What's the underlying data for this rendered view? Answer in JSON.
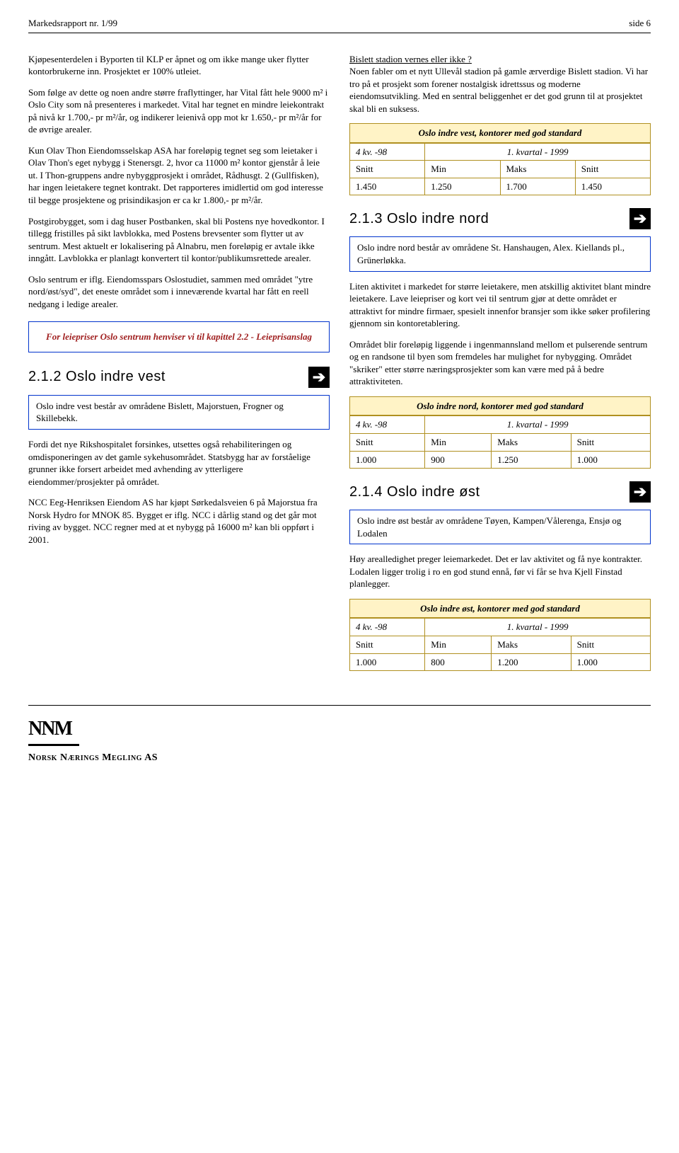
{
  "header": {
    "left": "Markedsrapport nr. 1/99",
    "right": "side 6"
  },
  "left_col": {
    "p1": "Kjøpesenterdelen i Byporten til KLP er åpnet og om ikke mange uker flytter kontorbrukerne inn. Prosjektet er 100% utleiet.",
    "p2": "Som følge av dette og noen andre større fraflyttinger, har Vital fått hele 9000 m² i Oslo City som nå presenteres i markedet. Vital har tegnet en mindre leiekontrakt på nivå kr 1.700,- pr m²/år, og indikerer leienivå opp mot kr 1.650,- pr m²/år for de øvrige arealer.",
    "p3": "Kun Olav Thon Eiendomsselskap ASA har foreløpig tegnet seg som leietaker i Olav Thon's eget nybygg i Stenersgt. 2, hvor ca 11000 m² kontor gjenstår å leie ut. I Thon-gruppens andre nybyggprosjekt i området, Rådhusgt. 2 (Gullfisken), har ingen leietakere tegnet kontrakt. Det rapporteres imidlertid om god interesse til begge prosjektene og prisindikasjon er ca kr 1.800,- pr m²/år.",
    "p4": "Postgirobygget, som i dag huser Postbanken, skal bli Postens nye hovedkontor. I tillegg fristilles på sikt lavblokka, med Postens brevsenter som flytter ut av sentrum. Mest aktuelt er lokalisering på Alnabru, men foreløpig er avtale ikke inngått. Lavblokka er planlagt konvertert til kontor/publikumsrettede arealer.",
    "p5": "Oslo sentrum er iflg. Eiendomsspars Oslostudiet, sammen med området \"ytre nord/øst/syd\", det eneste området som i inneværende kvartal har fått en reell nedgang i ledige arealer.",
    "callout": "For leiepriser Oslo sentrum henviser vi til kapittel 2.2 - Leieprisanslag",
    "h_212": "2.1.2 Oslo indre vest",
    "area_212": "Oslo indre vest består av områdene Bislett, Majorstuen, Frogner og  Skillebekk.",
    "p6": "Fordi det nye Rikshospitalet forsinkes, utsettes også rehabiliteringen og omdisponeringen av det gamle sykehusområdet. Statsbygg har av forståelige grunner ikke forsert arbeidet med avhending av ytterligere eiendommer/prosjekter på området.",
    "p7": "NCC Eeg-Henriksen Eiendom AS har kjøpt Sørkedalsveien 6 på Majorstua fra Norsk Hydro for MNOK 85. Bygget er iflg. NCC i dårlig stand og det går mot riving av bygget. NCC regner med at et nybygg på 16000 m² kan bli oppført i 2001."
  },
  "right_col": {
    "p1a": "Bislett stadion vernes eller ikke ?",
    "p1b": "Noen fabler om et nytt Ullevål stadion på gamle ærverdige Bislett stadion. Vi har tro på et prosjekt som forener nostalgisk idrettssus og moderne eiendomsutvikling. Med en sentral beliggenhet er det god grunn til at prosjektet skal bli en suksess.",
    "table_vest": {
      "title": "Oslo indre vest, kontorer med god standard",
      "q_prev": "4 kv. -98",
      "q_curr": "1. kvartal - 1999",
      "cols": [
        "Snitt",
        "Min",
        "Maks",
        "Snitt"
      ],
      "row": [
        "1.450",
        "1.250",
        "1.700",
        "1.450"
      ]
    },
    "h_213": "2.1.3 Oslo indre nord",
    "area_213": "Oslo indre nord består av områdene St. Hanshaugen, Alex. Kiellands pl., Grünerløkka.",
    "p2": "Liten aktivitet i markedet for større leietakere, men atskillig aktivitet blant mindre leietakere.  Lave leiepriser og kort vei til sentrum gjør at dette området er attraktivt for mindre firmaer, spesielt innenfor bransjer som ikke søker profilering gjennom sin kontoretablering.",
    "p3": "Området blir foreløpig liggende i ingenmannsland mellom et pulserende sentrum og en randsone til byen som fremdeles har mulighet for nybygging. Området \"skriker\" etter større næringsprosjekter som kan være med på å bedre attraktiviteten.",
    "table_nord": {
      "title": "Oslo indre nord, kontorer med god standard",
      "q_prev": "4 kv. -98",
      "q_curr": "1. kvartal - 1999",
      "cols": [
        "Snitt",
        "Min",
        "Maks",
        "Snitt"
      ],
      "row": [
        "1.000",
        "900",
        "1.250",
        "1.000"
      ]
    },
    "h_214": "2.1.4 Oslo indre øst",
    "area_214": "Oslo indre øst består av områdene Tøyen, Kampen/Vålerenga, Ensjø og Lodalen",
    "p4": "Høy arealledighet preger leiemarkedet. Det er lav aktivitet og få nye kontrakter. Lodalen ligger trolig i ro en god stund ennå, før vi får se hva Kjell Finstad planlegger.",
    "table_ost": {
      "title": "Oslo indre øst, kontorer med god standard",
      "q_prev": "4 kv. -98",
      "q_curr": "1. kvartal - 1999",
      "cols": [
        "Snitt",
        "Min",
        "Maks",
        "Snitt"
      ],
      "row": [
        "1.000",
        "800",
        "1.200",
        "1.000"
      ]
    }
  },
  "footer": {
    "logo_letters": "NNM",
    "logo_name_1": "Norsk Nærings Megling",
    "logo_name_2": " AS"
  },
  "style": {
    "callout_border": "#0033cc",
    "callout_text_color": "#a02020",
    "table_bg": "#fff3c6",
    "table_border": "#b09020"
  }
}
